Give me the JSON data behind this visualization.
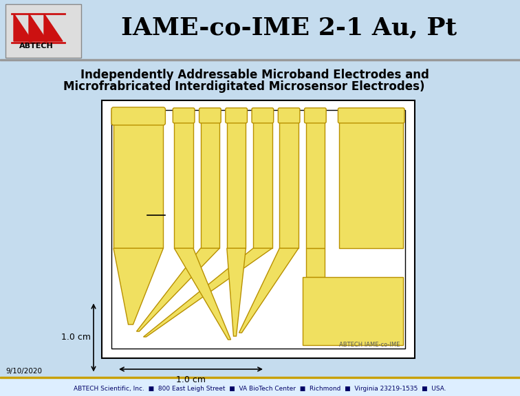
{
  "bg_color": "#c5dcee",
  "title": "IAME-co-IME 2-1 Au, Pt",
  "subtitle_line1": "Independently Addressable Microband Electrodes and",
  "subtitle_line2": "Microfrabricated Interdigitated Microsensor Electrodes)",
  "title_fontsize": 26,
  "subtitle_fontsize": 12,
  "footer_text": "ABTECH Scientific, Inc.  ■  800 East Leigh Street  ■  VA BioTech Center  ■  Richmond  ■  Virginia 23219-1535  ■  USA.",
  "date_text": "9/10/2020",
  "electrode_color": "#f0e060",
  "electrode_outline": "#b89000",
  "scale_label_cm": "1.0 cm",
  "abtech_label": "ABTECH IAME-co-IME"
}
